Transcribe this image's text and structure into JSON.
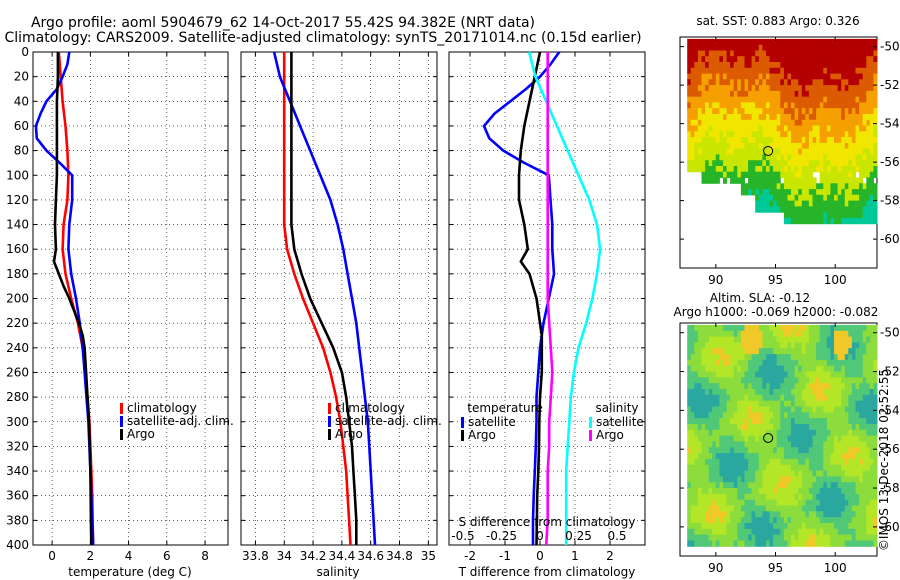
{
  "title": {
    "line1": "Argo profile: aoml 5904679_62 14-Oct-2017 55.42S 94.382E (NRT data)",
    "line2": "Climatology: CARS2009. Satellite-adjusted climatology: synTS_20171014.nc (0.15d earlier)"
  },
  "watermark": "©IMOS 13-Dec-2018 02:52:55",
  "colors": {
    "climatology": "#ff0000",
    "satellite": "#0000ff",
    "argo": "#000000",
    "salinity_sat": "#00ffff",
    "salinity_argo": "#ff00ff",
    "grid": "#000000"
  },
  "chart_data": [
    {
      "type": "line",
      "name": "temperature-panel",
      "xlabel": "temperature (deg C)",
      "xlim": [
        -1,
        9.2
      ],
      "ylim": [
        0,
        400
      ],
      "y_inverted": true,
      "x_ticks": [
        "0",
        "2",
        "4",
        "6",
        "8"
      ],
      "x_tick_values": [
        0,
        2,
        4,
        6,
        8
      ],
      "y_ticks": [
        "0",
        "20",
        "40",
        "60",
        "80",
        "100",
        "120",
        "140",
        "160",
        "180",
        "200",
        "220",
        "240",
        "260",
        "280",
        "300",
        "320",
        "340",
        "360",
        "380",
        "400"
      ],
      "y_tick_values": [
        0,
        20,
        40,
        60,
        80,
        100,
        120,
        140,
        160,
        180,
        200,
        220,
        240,
        260,
        280,
        300,
        320,
        340,
        360,
        380,
        400
      ],
      "legend": [
        "climatology",
        "satellite-adj. clim.",
        "Argo"
      ],
      "series": [
        {
          "name": "climatology",
          "color": "#ff0000",
          "depth": [
            0,
            20,
            40,
            60,
            80,
            100,
            120,
            140,
            160,
            180,
            200,
            220,
            240,
            260,
            280,
            300,
            320,
            340,
            360,
            380,
            400
          ],
          "values": [
            0.35,
            0.45,
            0.55,
            0.7,
            0.8,
            0.85,
            0.8,
            0.6,
            0.55,
            0.7,
            1.0,
            1.35,
            1.6,
            1.75,
            1.85,
            1.95,
            2.0,
            2.05,
            2.1,
            2.12,
            2.15
          ]
        },
        {
          "name": "satellite-adj. clim.",
          "color": "#0000ff",
          "depth": [
            0,
            10,
            20,
            30,
            40,
            50,
            60,
            70,
            80,
            90,
            100,
            120,
            140,
            160,
            180,
            200,
            220,
            240,
            260,
            280,
            300,
            320,
            340,
            360,
            380,
            400
          ],
          "values": [
            0.9,
            0.8,
            0.55,
            0.25,
            -0.3,
            -0.6,
            -0.85,
            -0.8,
            -0.3,
            0.4,
            1.05,
            1.05,
            0.9,
            0.85,
            1.0,
            1.25,
            1.45,
            1.6,
            1.7,
            1.8,
            1.9,
            1.95,
            2.0,
            2.05,
            2.1,
            2.15
          ]
        },
        {
          "name": "Argo",
          "color": "#000000",
          "depth": [
            0,
            20,
            40,
            60,
            80,
            100,
            120,
            140,
            160,
            170,
            180,
            190,
            200,
            210,
            220,
            230,
            240,
            260,
            280,
            300,
            320,
            340,
            360,
            380,
            400
          ],
          "values": [
            0.3,
            0.3,
            0.25,
            0.25,
            0.25,
            0.25,
            0.2,
            0.15,
            0.2,
            0.1,
            0.35,
            0.6,
            0.9,
            1.15,
            1.4,
            1.6,
            1.7,
            1.78,
            1.85,
            1.93,
            1.97,
            2.0,
            2.02,
            2.03,
            2.05
          ]
        }
      ]
    },
    {
      "type": "line",
      "name": "salinity-panel",
      "xlabel": "salinity",
      "xlim": [
        33.7,
        35.06
      ],
      "ylim": [
        0,
        400
      ],
      "y_inverted": true,
      "x_ticks": [
        "33.8",
        "34",
        "34.2",
        "34.4",
        "34.6",
        "34.8",
        "35"
      ],
      "x_tick_values": [
        33.8,
        34.0,
        34.2,
        34.4,
        34.6,
        34.8,
        35.0
      ],
      "legend": [
        "climatology",
        "satellite-adj. clim.",
        "Argo"
      ],
      "series": [
        {
          "name": "climatology",
          "color": "#ff0000",
          "depth": [
            0,
            20,
            40,
            60,
            80,
            100,
            120,
            140,
            160,
            180,
            200,
            220,
            240,
            260,
            280,
            300,
            320,
            340,
            360,
            380,
            400
          ],
          "values": [
            34.0,
            34.0,
            34.0,
            34.0,
            34.0,
            34.0,
            34.0,
            34.0,
            34.02,
            34.07,
            34.13,
            34.2,
            34.27,
            34.32,
            34.36,
            34.39,
            34.41,
            34.43,
            34.44,
            34.45,
            34.46
          ]
        },
        {
          "name": "satellite-adj. clim.",
          "color": "#0000ff",
          "depth": [
            0,
            20,
            40,
            60,
            80,
            100,
            120,
            140,
            160,
            180,
            200,
            220,
            240,
            260,
            280,
            300,
            320,
            340,
            360,
            380,
            400
          ],
          "values": [
            33.93,
            33.97,
            34.04,
            34.11,
            34.18,
            34.25,
            34.32,
            34.37,
            34.41,
            34.44,
            34.47,
            34.5,
            34.52,
            34.54,
            34.56,
            34.58,
            34.59,
            34.6,
            34.61,
            34.62,
            34.63
          ]
        },
        {
          "name": "Argo",
          "color": "#000000",
          "depth": [
            0,
            20,
            40,
            60,
            80,
            100,
            120,
            140,
            160,
            180,
            200,
            220,
            240,
            260,
            280,
            300,
            320,
            340,
            360,
            380,
            400
          ],
          "values": [
            34.05,
            34.05,
            34.05,
            34.05,
            34.05,
            34.05,
            34.05,
            34.05,
            34.07,
            34.12,
            34.18,
            34.26,
            34.34,
            34.4,
            34.43,
            34.45,
            34.47,
            34.48,
            34.49,
            34.5,
            34.5
          ]
        }
      ]
    },
    {
      "type": "line",
      "name": "difference-panel",
      "xlabel": "T difference from climatology",
      "top_axis_label": "S difference from climatology",
      "xlim": [
        -2.6,
        3.0
      ],
      "ylim": [
        0,
        400
      ],
      "y_inverted": true,
      "x_ticks": [
        "-2",
        "-1",
        "0",
        "1",
        "2"
      ],
      "x_tick_values": [
        -2,
        -1,
        0,
        1,
        2
      ],
      "s_ticks": [
        "-0.5",
        "-0.25",
        "0",
        "0.25",
        "0.5"
      ],
      "legend_temperature": {
        "heading": "temperature",
        "entries": [
          "satellite",
          "Argo"
        ]
      },
      "legend_salinity": {
        "heading": "salinity",
        "entries": [
          "satellite",
          "Argo"
        ]
      },
      "series": [
        {
          "name": "T satellite",
          "color": "#0000ff",
          "depth": [
            0,
            10,
            20,
            30,
            40,
            50,
            60,
            70,
            80,
            90,
            100,
            120,
            140,
            160,
            180,
            200,
            220,
            240,
            260,
            280,
            300,
            320,
            340,
            360,
            380,
            400
          ],
          "values": [
            0.55,
            0.3,
            0.0,
            -0.4,
            -0.85,
            -1.3,
            -1.6,
            -1.45,
            -1.05,
            -0.45,
            0.25,
            0.3,
            0.35,
            0.35,
            0.4,
            0.25,
            0.1,
            0.0,
            -0.05,
            -0.1,
            -0.1,
            -0.12,
            -0.15,
            -0.18,
            -0.2,
            -0.2
          ]
        },
        {
          "name": "T Argo",
          "color": "#000000",
          "depth": [
            0,
            20,
            40,
            60,
            80,
            100,
            120,
            140,
            160,
            170,
            180,
            190,
            200,
            210,
            220,
            230,
            240,
            260,
            280,
            300,
            320,
            340,
            360,
            380,
            400
          ],
          "values": [
            0.0,
            -0.15,
            -0.3,
            -0.45,
            -0.55,
            -0.6,
            -0.6,
            -0.45,
            -0.35,
            -0.55,
            -0.3,
            -0.2,
            -0.1,
            -0.05,
            0.0,
            0.05,
            0.05,
            0.05,
            0.0,
            -0.02,
            -0.03,
            -0.05,
            -0.08,
            -0.09,
            -0.1
          ]
        },
        {
          "name": "S satellite",
          "color": "#00ffff",
          "depth": [
            0,
            20,
            40,
            60,
            80,
            100,
            120,
            140,
            160,
            180,
            200,
            220,
            240,
            260,
            280,
            300,
            320,
            340,
            360,
            380,
            400
          ],
          "values": [
            -0.07,
            -0.03,
            0.04,
            0.11,
            0.18,
            0.25,
            0.32,
            0.37,
            0.39,
            0.37,
            0.34,
            0.3,
            0.25,
            0.22,
            0.2,
            0.19,
            0.18,
            0.17,
            0.17,
            0.17,
            0.17
          ]
        },
        {
          "name": "S Argo",
          "color": "#ff00ff",
          "depth": [
            0,
            20,
            40,
            60,
            80,
            100,
            120,
            140,
            160,
            180,
            200,
            220,
            240,
            260,
            280,
            300,
            320,
            340,
            360,
            380,
            400
          ],
          "values": [
            0.05,
            0.05,
            0.05,
            0.05,
            0.05,
            0.05,
            0.05,
            0.05,
            0.05,
            0.05,
            0.05,
            0.06,
            0.07,
            0.08,
            0.07,
            0.06,
            0.06,
            0.05,
            0.05,
            0.05,
            0.04
          ]
        }
      ]
    },
    {
      "type": "heatmap",
      "name": "sst-map",
      "title": "sat. SST: 0.883 Argo: 0.326",
      "xlim": [
        87,
        103.5
      ],
      "ylim": [
        -61.5,
        -49.5
      ],
      "x_ticks": [
        "90",
        "95",
        "100"
      ],
      "x_tick_values": [
        90,
        95,
        100
      ],
      "y_ticks": [
        "-50",
        "-52",
        "-54",
        "-56",
        "-58",
        "-60"
      ],
      "y_tick_values": [
        -50,
        -52,
        -54,
        -56,
        -58,
        -60
      ],
      "marker": {
        "lon": 94.38,
        "lat": -55.42
      },
      "color_bands": [
        "#b40000",
        "#dc5a00",
        "#f5a000",
        "#f0e600",
        "#c8e600",
        "#28b428",
        "#00c896"
      ]
    },
    {
      "type": "heatmap",
      "name": "sla-map",
      "title_line1": "Altim. SLA: -0.12",
      "title_line2": "Argo h1000: -0.069 h2000: -0.082",
      "xlim": [
        87,
        103.5
      ],
      "ylim": [
        -61.5,
        -49.5
      ],
      "x_ticks": [
        "90",
        "95",
        "100"
      ],
      "x_tick_values": [
        90,
        95,
        100
      ],
      "y_ticks": [
        "-50",
        "-52",
        "-54",
        "-56",
        "-58",
        "-60"
      ],
      "y_tick_values": [
        -50,
        -52,
        -54,
        -56,
        -58,
        -60
      ],
      "marker": {
        "lon": 94.38,
        "lat": -55.42
      },
      "color_bands": [
        "#2aa8a0",
        "#50c878",
        "#8cdc3c",
        "#b4e628",
        "#f0c828"
      ]
    }
  ]
}
